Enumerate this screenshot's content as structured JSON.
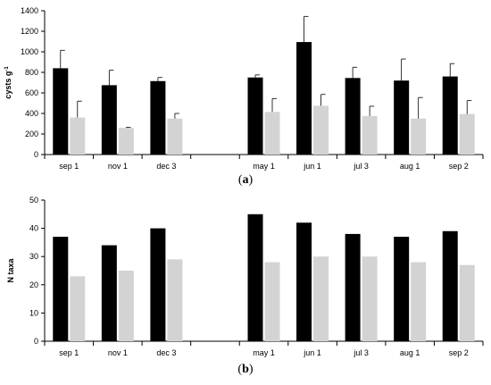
{
  "chart_data": [
    {
      "type": "bar",
      "panel_label": "a",
      "ylabel": "cysts g",
      "ylabel_superscript": "-1",
      "ylim": [
        0,
        1400
      ],
      "yticks": [
        0,
        200,
        400,
        600,
        800,
        1000,
        1200,
        1400
      ],
      "categories": [
        "sep 1",
        "nov 1",
        "dec 3",
        "",
        "may 1",
        "jun 1",
        "jul 3",
        "aug 1",
        "sep 2"
      ],
      "series": [
        {
          "color": "#000000",
          "values": [
            840,
            675,
            715,
            null,
            750,
            1095,
            745,
            720,
            760
          ],
          "errors": [
            175,
            145,
            35,
            null,
            25,
            250,
            105,
            210,
            125
          ]
        },
        {
          "color": "#d3d3d3",
          "values": [
            360,
            260,
            350,
            null,
            415,
            475,
            375,
            350,
            395
          ],
          "errors": [
            160,
            5,
            50,
            null,
            130,
            110,
            95,
            205,
            130
          ]
        }
      ],
      "grid": false,
      "legend": "none"
    },
    {
      "type": "bar",
      "panel_label": "b",
      "ylabel": "N taxa",
      "ylim": [
        0,
        50
      ],
      "yticks": [
        0,
        10,
        20,
        30,
        40,
        50
      ],
      "categories": [
        "sep 1",
        "nov 1",
        "dec 3",
        "",
        "may 1",
        "jun 1",
        "jul 3",
        "aug 1",
        "sep 2"
      ],
      "series": [
        {
          "color": "#000000",
          "values": [
            37,
            34,
            40,
            null,
            45,
            42,
            38,
            37,
            39
          ]
        },
        {
          "color": "#d3d3d3",
          "values": [
            23,
            25,
            29,
            null,
            28,
            30,
            30,
            28,
            27
          ]
        }
      ],
      "grid": false,
      "legend": "none"
    }
  ]
}
